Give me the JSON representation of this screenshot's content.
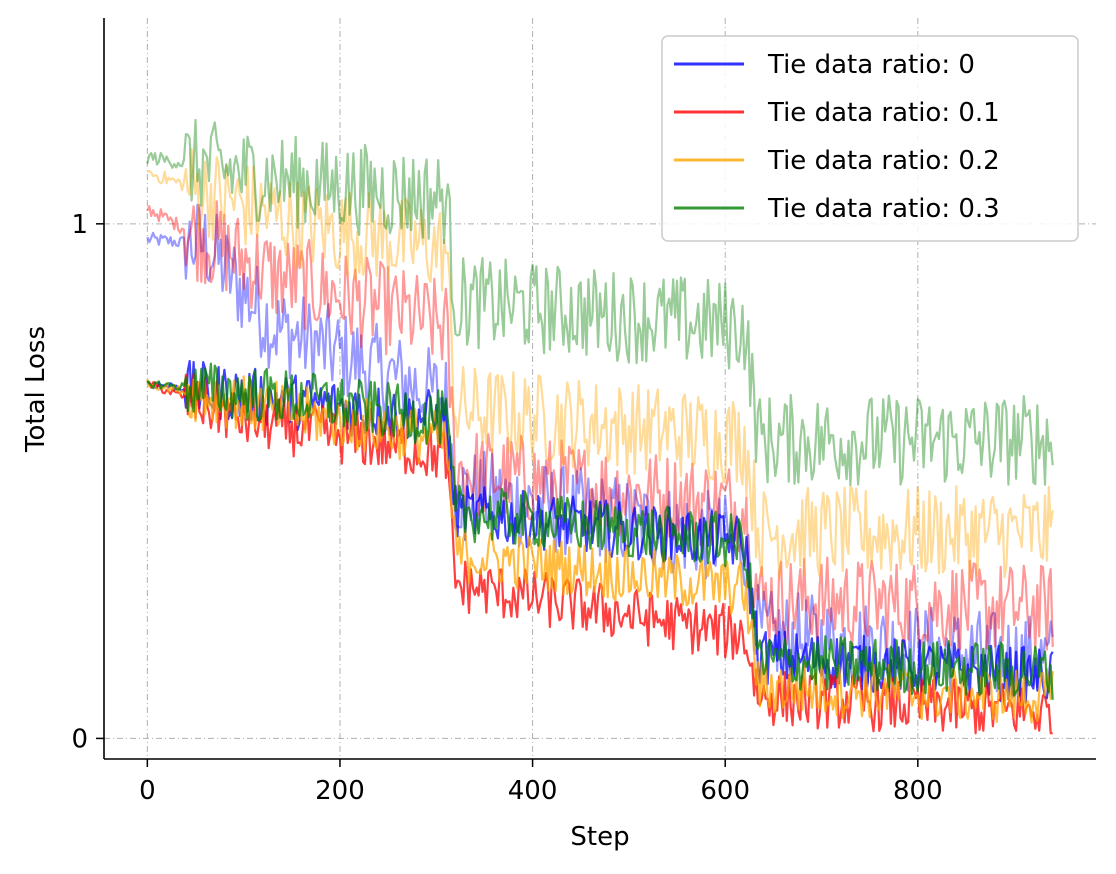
{
  "chart_data": {
    "type": "line",
    "title": "",
    "xlabel": "Step",
    "ylabel": "Total Loss",
    "xlim": [
      -45,
      985
    ],
    "ylim": [
      -0.04,
      1.4
    ],
    "x_ticks": [
      0,
      200,
      400,
      600,
      800
    ],
    "y_ticks": [
      0,
      1
    ],
    "grid": true,
    "legend_position": "top-right",
    "x_max_step": 940,
    "series": [
      {
        "name": "Tie data ratio: 0",
        "color": "#0000ff",
        "values_solid_segments": [
          [
            0,
            0.69
          ],
          [
            130,
            0.66
          ],
          [
            310,
            0.62
          ],
          [
            320,
            0.44
          ],
          [
            620,
            0.38
          ],
          [
            635,
            0.16
          ],
          [
            940,
            0.12
          ]
        ],
        "values_faint_segments": [
          [
            0,
            0.97
          ],
          [
            60,
            0.96
          ],
          [
            130,
            0.8
          ],
          [
            310,
            0.66
          ],
          [
            320,
            0.48
          ],
          [
            620,
            0.38
          ],
          [
            635,
            0.2
          ],
          [
            940,
            0.15
          ]
        ]
      },
      {
        "name": "Tie data ratio: 0.1",
        "color": "#ff0000",
        "values_solid_segments": [
          [
            0,
            0.69
          ],
          [
            100,
            0.62
          ],
          [
            310,
            0.55
          ],
          [
            320,
            0.3
          ],
          [
            620,
            0.2
          ],
          [
            635,
            0.08
          ],
          [
            940,
            0.05
          ]
        ],
        "values_faint_segments": [
          [
            0,
            1.03
          ],
          [
            130,
            0.9
          ],
          [
            310,
            0.8
          ],
          [
            320,
            0.52
          ],
          [
            620,
            0.45
          ],
          [
            635,
            0.27
          ],
          [
            940,
            0.25
          ]
        ]
      },
      {
        "name": "Tie data ratio: 0.2",
        "color": "#ffa500",
        "values_solid_segments": [
          [
            0,
            0.69
          ],
          [
            130,
            0.64
          ],
          [
            310,
            0.58
          ],
          [
            320,
            0.36
          ],
          [
            620,
            0.29
          ],
          [
            635,
            0.1
          ],
          [
            940,
            0.08
          ]
        ],
        "values_faint_segments": [
          [
            0,
            1.1
          ],
          [
            160,
            1.0
          ],
          [
            310,
            0.95
          ],
          [
            320,
            0.64
          ],
          [
            620,
            0.58
          ],
          [
            635,
            0.4
          ],
          [
            940,
            0.4
          ]
        ]
      },
      {
        "name": "Tie data ratio: 0.3",
        "color": "#008000",
        "values_solid_segments": [
          [
            0,
            0.69
          ],
          [
            160,
            0.66
          ],
          [
            310,
            0.62
          ],
          [
            320,
            0.44
          ],
          [
            620,
            0.38
          ],
          [
            635,
            0.15
          ],
          [
            940,
            0.13
          ]
        ],
        "values_faint_segments": [
          [
            0,
            1.13
          ],
          [
            160,
            1.08
          ],
          [
            310,
            1.05
          ],
          [
            320,
            0.85
          ],
          [
            620,
            0.8
          ],
          [
            635,
            0.58
          ],
          [
            940,
            0.58
          ]
        ]
      }
    ]
  }
}
